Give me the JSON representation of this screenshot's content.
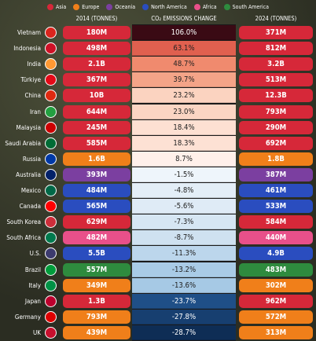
{
  "legend": [
    {
      "name": "Asia",
      "color": "#d62839"
    },
    {
      "name": "Europe",
      "color": "#f07f1a"
    },
    {
      "name": "Oceania",
      "color": "#7b3fa0"
    },
    {
      "name": "North America",
      "color": "#2a4dbf"
    },
    {
      "name": "Africa",
      "color": "#e8508a"
    },
    {
      "name": "South America",
      "color": "#2e8b3e"
    }
  ],
  "header": {
    "col1": "2014 (TONNES)",
    "col2": "CO₂ EMISSIONS CHANGE",
    "col3": "2024 (TONNES)"
  },
  "rows": [
    {
      "country": "Vietnam",
      "region": 0,
      "e2014": "180M",
      "change": "106.0%",
      "change_color": "#3a0a14",
      "e2024": "371M"
    },
    {
      "country": "Indonesia",
      "region": 0,
      "e2014": "498M",
      "change": "63.1%",
      "change_color": "#e0604f",
      "e2024": "812M"
    },
    {
      "country": "India",
      "region": 0,
      "e2014": "2.1B",
      "change": "48.7%",
      "change_color": "#f08a6e",
      "e2024": "3.2B"
    },
    {
      "country": "Türkiye",
      "region": 0,
      "e2014": "367M",
      "change": "39.7%",
      "change_color": "#f4a488",
      "e2024": "513M"
    },
    {
      "country": "China",
      "region": 0,
      "e2014": "10B",
      "change": "23.2%",
      "change_color": "#fbd3c0",
      "e2024": "12.3B"
    },
    {
      "country": "Iran",
      "region": 0,
      "e2014": "644M",
      "change": "23.0%",
      "change_color": "#fbd5c3",
      "e2024": "793M"
    },
    {
      "country": "Malaysia",
      "region": 0,
      "e2014": "245M",
      "change": "18.4%",
      "change_color": "#fde0d2",
      "e2024": "290M"
    },
    {
      "country": "Saudi Arabia",
      "region": 0,
      "e2014": "585M",
      "change": "18.3%",
      "change_color": "#fde1d4",
      "e2024": "692M"
    },
    {
      "country": "Russia",
      "region": 1,
      "e2014": "1.6B",
      "change": "8.7%",
      "change_color": "#fff0ea",
      "e2024": "1.8B"
    },
    {
      "country": "Australia",
      "region": 2,
      "e2014": "393M",
      "change": "-1.5%",
      "change_color": "#eef5fb",
      "e2024": "387M"
    },
    {
      "country": "Mexico",
      "region": 3,
      "e2014": "484M",
      "change": "-4.8%",
      "change_color": "#e3eef7",
      "e2024": "461M"
    },
    {
      "country": "Canada",
      "region": 3,
      "e2014": "565M",
      "change": "-5.6%",
      "change_color": "#dfebf6",
      "e2024": "533M"
    },
    {
      "country": "South Korea",
      "region": 0,
      "e2014": "629M",
      "change": "-7.3%",
      "change_color": "#d6e6f3",
      "e2024": "584M"
    },
    {
      "country": "South Africa",
      "region": 4,
      "e2014": "482M",
      "change": "-8.7%",
      "change_color": "#cfe1f0",
      "e2024": "440M"
    },
    {
      "country": "U.S.",
      "region": 3,
      "e2014": "5.5B",
      "change": "-11.3%",
      "change_color": "#bcd6ec",
      "e2024": "4.9B"
    },
    {
      "country": "Brazil",
      "region": 5,
      "e2014": "557M",
      "change": "-13.2%",
      "change_color": "#a9cbe6",
      "e2024": "483M"
    },
    {
      "country": "Italy",
      "region": 1,
      "e2014": "349M",
      "change": "-13.6%",
      "change_color": "#a6c9e5",
      "e2024": "302M"
    },
    {
      "country": "Japan",
      "region": 0,
      "e2014": "1.3B",
      "change": "-23.7%",
      "change_color": "#1f4f87",
      "e2024": "962M"
    },
    {
      "country": "Germany",
      "region": 1,
      "e2014": "793M",
      "change": "-27.8%",
      "change_color": "#173f70",
      "e2024": "572M"
    },
    {
      "country": "UK",
      "region": 1,
      "e2014": "439M",
      "change": "-28.7%",
      "change_color": "#0e2d55",
      "e2024": "313M"
    }
  ]
}
